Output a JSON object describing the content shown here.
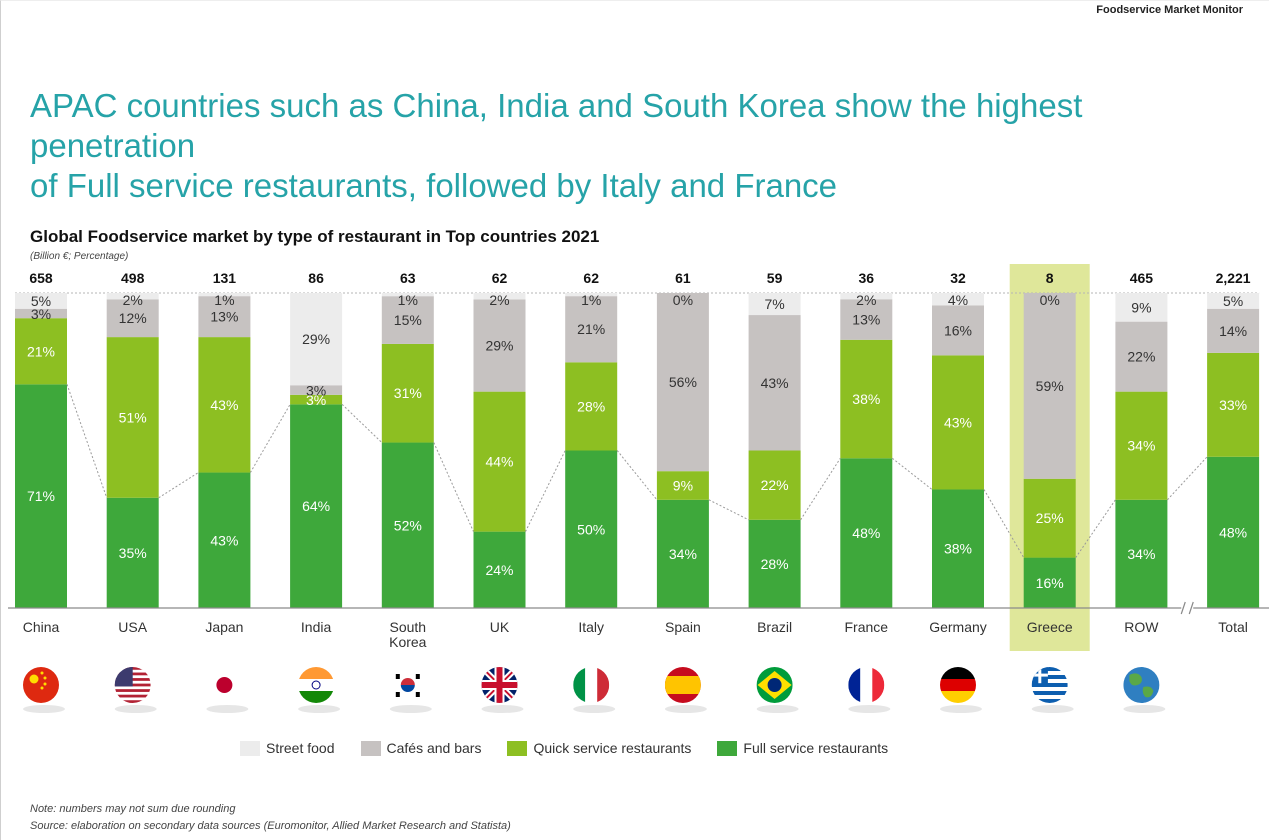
{
  "header": {
    "label": "Foodservice Market Monitor"
  },
  "headline": {
    "line1": "APAC countries such as China, India and South Korea show the highest penetration",
    "line2": "of Full service restaurants, followed by Italy and France"
  },
  "legend": {
    "items": [
      {
        "label": "Street food",
        "color": "#ececec"
      },
      {
        "label": "Cafés and bars",
        "color": "#c6c2c1"
      },
      {
        "label": "Quick service restaurants",
        "color": "#8dbf22"
      },
      {
        "label": "Full service restaurants",
        "color": "#3ea83b"
      }
    ]
  },
  "notes": {
    "note": "Note: numbers may not sum due rounding",
    "source": "Source: elaboration on secondary data sources (Euromonitor, Allied Market Research and Statista)"
  },
  "flags": [
    {
      "country": "China",
      "icon": "china-flag-icon"
    },
    {
      "country": "USA",
      "icon": "usa-flag-icon"
    },
    {
      "country": "Japan",
      "icon": "japan-flag-icon"
    },
    {
      "country": "India",
      "icon": "india-flag-icon"
    },
    {
      "country": "South Korea",
      "icon": "south-korea-flag-icon"
    },
    {
      "country": "UK",
      "icon": "uk-flag-icon"
    },
    {
      "country": "Italy",
      "icon": "italy-flag-icon"
    },
    {
      "country": "Spain",
      "icon": "spain-flag-icon"
    },
    {
      "country": "Brazil",
      "icon": "brazil-flag-icon"
    },
    {
      "country": "France",
      "icon": "france-flag-icon"
    },
    {
      "country": "Germany",
      "icon": "germany-flag-icon"
    },
    {
      "country": "Greece",
      "icon": "greece-flag-icon"
    },
    {
      "country": "ROW",
      "icon": "globe-icon"
    }
  ],
  "chart_data": {
    "type": "bar",
    "stacked": true,
    "normalized": true,
    "title": "Global Foodservice market by type of restaurant in Top countries 2021",
    "subtitle": "(Billion €; Percentage)",
    "categories": [
      "China",
      "USA",
      "Japan",
      "India",
      "South Korea",
      "UK",
      "Italy",
      "Spain",
      "Brazil",
      "France",
      "Germany",
      "Greece",
      "ROW",
      "Total"
    ],
    "category_labels": [
      "China",
      "USA",
      "Japan",
      "India",
      "South\nKorea",
      "UK",
      "Italy",
      "Spain",
      "Brazil",
      "France",
      "Germany",
      "Greece",
      "ROW",
      "Total"
    ],
    "totals": [
      658,
      498,
      131,
      86,
      63,
      62,
      62,
      61,
      59,
      36,
      32,
      8,
      465,
      2221
    ],
    "total_labels": [
      "658",
      "498",
      "131",
      "86",
      "63",
      "62",
      "62",
      "61",
      "59",
      "36",
      "32",
      "8",
      "465",
      "2,221"
    ],
    "unit": "Billion €",
    "highlight": "Greece",
    "highlight_color": "#dfe79a",
    "axis_break_before": "Total",
    "series": [
      {
        "name": "Full service restaurants",
        "color": "#3ea83b",
        "values": [
          71,
          35,
          43,
          64,
          52,
          24,
          50,
          34,
          28,
          48,
          38,
          16,
          34,
          48
        ]
      },
      {
        "name": "Quick service restaurants",
        "color": "#8dbf22",
        "values": [
          21,
          51,
          43,
          3,
          31,
          44,
          28,
          9,
          22,
          38,
          43,
          25,
          34,
          33
        ]
      },
      {
        "name": "Cafés and bars",
        "color": "#c6c2c1",
        "values": [
          3,
          12,
          13,
          3,
          15,
          29,
          21,
          56,
          43,
          13,
          16,
          59,
          22,
          14
        ]
      },
      {
        "name": "Street food",
        "color": "#ececec",
        "values": [
          5,
          2,
          1,
          29,
          1,
          2,
          1,
          0,
          7,
          2,
          4,
          0,
          9,
          5
        ]
      }
    ]
  }
}
